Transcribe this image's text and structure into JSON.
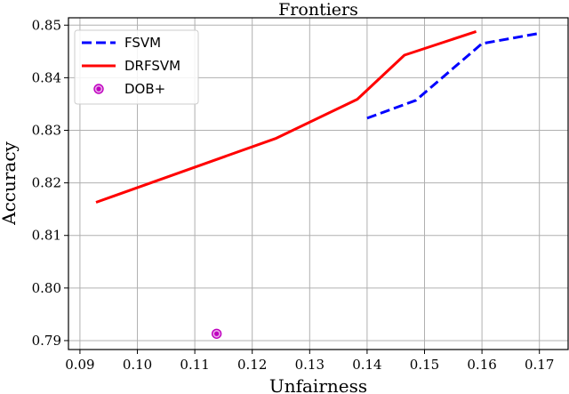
{
  "chart_data": {
    "type": "line",
    "title": "Frontiers",
    "xlabel": "Unfairness",
    "ylabel": "Accuracy",
    "xlim": [
      0.088,
      0.175
    ],
    "ylim": [
      0.7883,
      0.8514
    ],
    "xticks": [
      0.09,
      0.1,
      0.11,
      0.12,
      0.13,
      0.14,
      0.15,
      0.16,
      0.17
    ],
    "xtick_labels": [
      "0.09",
      "0.10",
      "0.11",
      "0.12",
      "0.13",
      "0.14",
      "0.15",
      "0.16",
      "0.17"
    ],
    "yticks": [
      0.79,
      0.8,
      0.81,
      0.82,
      0.83,
      0.84,
      0.85
    ],
    "ytick_labels": [
      "0.79",
      "0.80",
      "0.81",
      "0.82",
      "0.83",
      "0.84",
      "0.85"
    ],
    "grid": true,
    "legend_position": "top-left",
    "series": [
      {
        "name": "FSVM",
        "style": "dashed",
        "color": "#0000ff",
        "x": [
          0.14,
          0.1485,
          0.16,
          0.1703
        ],
        "y": [
          0.8323,
          0.8357,
          0.8465,
          0.8485
        ]
      },
      {
        "name": "DRFSVM",
        "style": "solid",
        "color": "#ff0000",
        "x": [
          0.0928,
          0.1242,
          0.1383,
          0.1465,
          0.159
        ],
        "y": [
          0.8163,
          0.8285,
          0.8359,
          0.8443,
          0.8488
        ]
      },
      {
        "name": "DOB+",
        "style": "marker",
        "color": "#bf00bf",
        "x": [
          0.1138
        ],
        "y": [
          0.7913
        ]
      }
    ]
  }
}
